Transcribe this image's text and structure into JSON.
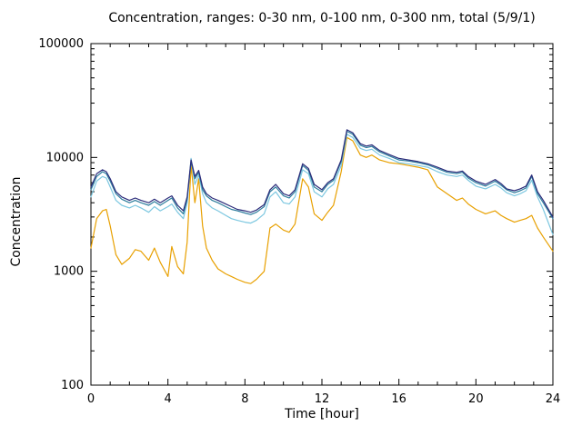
{
  "chart_data": {
    "type": "line",
    "title": "Concentration, ranges: 0-30 nm, 0-100 nm, 0-300 nm, total (5/9/1)",
    "xlabel": "Time [hour]",
    "ylabel": "Concentration",
    "xlim": [
      0,
      24
    ],
    "ylim": [
      100,
      100000
    ],
    "y_scale": "log",
    "grid": false,
    "legend_position": "none",
    "xticks": [
      0,
      4,
      8,
      12,
      16,
      20,
      24
    ],
    "yticks": [
      100,
      1000,
      10000,
      100000
    ],
    "ytick_labels": [
      "100",
      "1000",
      "10000",
      "100000"
    ],
    "x": [
      0,
      0.3,
      0.6,
      0.8,
      1.0,
      1.3,
      1.6,
      2.0,
      2.3,
      2.6,
      3.0,
      3.3,
      3.6,
      4.0,
      4.2,
      4.5,
      4.8,
      5.0,
      5.2,
      5.4,
      5.6,
      5.8,
      6.0,
      6.3,
      6.6,
      7.0,
      7.3,
      7.6,
      8.0,
      8.3,
      8.6,
      9.0,
      9.3,
      9.6,
      10.0,
      10.3,
      10.6,
      11.0,
      11.3,
      11.6,
      12.0,
      12.3,
      12.6,
      13.0,
      13.3,
      13.6,
      14.0,
      14.3,
      14.6,
      15.0,
      15.5,
      16.0,
      16.5,
      17.0,
      17.5,
      18.0,
      18.5,
      19.0,
      19.3,
      19.6,
      20.0,
      20.5,
      21.0,
      21.3,
      21.6,
      22.0,
      22.3,
      22.6,
      22.9,
      23.2,
      23.5,
      24.0
    ],
    "series": [
      {
        "name": "0-30 nm",
        "color": "#e8a000",
        "values": [
          1600,
          2900,
          3400,
          3500,
          2500,
          1400,
          1150,
          1300,
          1550,
          1500,
          1250,
          1600,
          1200,
          900,
          1650,
          1100,
          950,
          1800,
          8500,
          4000,
          6500,
          2500,
          1600,
          1250,
          1050,
          950,
          900,
          850,
          800,
          780,
          850,
          1000,
          2400,
          2600,
          2300,
          2200,
          2600,
          6500,
          5500,
          3200,
          2800,
          3300,
          3800,
          7500,
          15000,
          14000,
          10500,
          10000,
          10500,
          9500,
          9000,
          8800,
          8500,
          8200,
          7800,
          5500,
          4800,
          4200,
          4400,
          3900,
          3500,
          3200,
          3400,
          3100,
          2900,
          2700,
          2800,
          2900,
          3100,
          2400,
          2000,
          1500
        ]
      },
      {
        "name": "0-100 nm",
        "color": "#7cc7e0",
        "values": [
          4500,
          6200,
          6800,
          6600,
          5500,
          4200,
          3800,
          3600,
          3800,
          3600,
          3300,
          3700,
          3400,
          3700,
          3900,
          3300,
          2900,
          4000,
          9800,
          5800,
          7000,
          4800,
          4000,
          3600,
          3400,
          3100,
          2900,
          2800,
          2700,
          2650,
          2800,
          3200,
          4500,
          5000,
          4000,
          3900,
          4500,
          7800,
          7200,
          5000,
          4500,
          5300,
          5800,
          8500,
          16000,
          15000,
          12000,
          11500,
          11800,
          10500,
          9800,
          9000,
          8800,
          8500,
          8200,
          7500,
          7000,
          6800,
          7000,
          6300,
          5600,
          5300,
          5800,
          5400,
          4900,
          4600,
          4800,
          5100,
          6300,
          4500,
          3500,
          2100
        ]
      },
      {
        "name": "0-300 nm",
        "color": "#2e7e9e",
        "values": [
          5200,
          6800,
          7500,
          7200,
          6200,
          4800,
          4300,
          4000,
          4200,
          4000,
          3800,
          4100,
          3800,
          4200,
          4400,
          3600,
          3200,
          4300,
          9200,
          6500,
          7400,
          5200,
          4600,
          4200,
          4000,
          3700,
          3500,
          3400,
          3250,
          3150,
          3300,
          3700,
          5000,
          5500,
          4600,
          4400,
          5000,
          8500,
          7700,
          5500,
          5000,
          5800,
          6300,
          9200,
          17000,
          16000,
          12800,
          12200,
          12500,
          11200,
          10300,
          9500,
          9300,
          9000,
          8600,
          8000,
          7400,
          7200,
          7400,
          6600,
          6000,
          5600,
          6200,
          5700,
          5200,
          4900,
          5100,
          5400,
          6800,
          4800,
          4000,
          2900
        ]
      },
      {
        "name": "total",
        "color": "#2c2c7a",
        "values": [
          5500,
          7200,
          7800,
          7500,
          6500,
          5000,
          4500,
          4200,
          4400,
          4200,
          4000,
          4300,
          4000,
          4400,
          4600,
          3800,
          3400,
          4500,
          9500,
          6800,
          7700,
          5500,
          4800,
          4400,
          4200,
          3900,
          3700,
          3500,
          3400,
          3300,
          3450,
          3850,
          5200,
          5800,
          4800,
          4600,
          5200,
          8800,
          8000,
          5800,
          5200,
          6000,
          6500,
          9500,
          17500,
          16500,
          13200,
          12600,
          12900,
          11500,
          10600,
          9800,
          9500,
          9200,
          8800,
          8200,
          7600,
          7400,
          7600,
          6800,
          6200,
          5800,
          6400,
          5900,
          5300,
          5100,
          5300,
          5600,
          7000,
          5000,
          4200,
          3000
        ]
      }
    ]
  }
}
